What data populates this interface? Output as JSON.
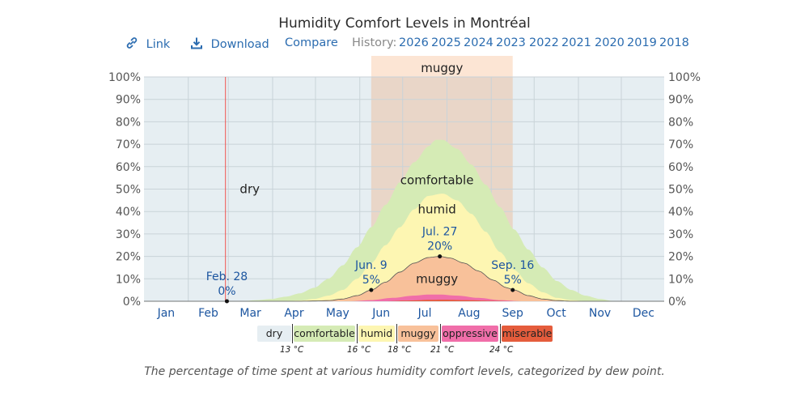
{
  "title": "Humidity Comfort Levels in Montréal",
  "nav": {
    "link_label": "Link",
    "download_label": "Download",
    "compare_label": "Compare",
    "history_label": "History:",
    "years": [
      "2026",
      "2025",
      "2024",
      "2023",
      "2022",
      "2021",
      "2020",
      "2019",
      "2018"
    ]
  },
  "colors": {
    "dry": "#e6eef2",
    "comfortable": "#d5ebb5",
    "humid": "#fdf6b2",
    "muggy": "#f8c19a",
    "oppressive": "#f06ea9",
    "miserable": "#e55c3c",
    "muggy_season": "#fbdcc6",
    "accent_blue": "#1d56a0"
  },
  "legend": {
    "categories": [
      "dry",
      "comfortable",
      "humid",
      "muggy",
      "oppressive",
      "miserable"
    ],
    "thresholds": [
      "13 °C",
      "16 °C",
      "18 °C",
      "21 °C",
      "24 °C"
    ]
  },
  "caption": "The percentage of time spent at various humidity comfort levels, categorized by dew point.",
  "chart_data": {
    "type": "area",
    "x_unit": "day of year",
    "months": [
      "Jan",
      "Feb",
      "Mar",
      "Apr",
      "May",
      "Jun",
      "Jul",
      "Aug",
      "Sep",
      "Oct",
      "Nov",
      "Dec"
    ],
    "ylim": [
      0,
      100
    ],
    "yticks": [
      "0%",
      "10%",
      "20%",
      "30%",
      "40%",
      "50%",
      "60%",
      "70%",
      "80%",
      "90%",
      "100%"
    ],
    "stacked_series_cumulative_percent": [
      {
        "name": "miserable",
        "x": [
          1,
          170,
          185,
          200,
          210,
          225,
          245,
          260,
          365
        ],
        "values": [
          0,
          0,
          0.3,
          0.6,
          0.7,
          0.5,
          0.2,
          0,
          0
        ]
      },
      {
        "name": "oppressive",
        "x": [
          1,
          145,
          160,
          175,
          190,
          200,
          208,
          220,
          235,
          250,
          265,
          365
        ],
        "values": [
          0,
          0,
          0.5,
          1.5,
          2.5,
          3,
          3,
          2.5,
          1.5,
          0.5,
          0,
          0
        ]
      },
      {
        "name": "muggy",
        "x": [
          1,
          110,
          120,
          130,
          140,
          150,
          160,
          170,
          180,
          190,
          200,
          208,
          215,
          225,
          235,
          245,
          255,
          260,
          270,
          280,
          290,
          300,
          365
        ],
        "values": [
          0,
          0,
          0.1,
          0.3,
          1,
          2.5,
          5,
          8.5,
          13,
          17,
          19.5,
          20,
          19.3,
          17,
          13.5,
          9.5,
          6,
          5,
          2.5,
          1,
          0.3,
          0,
          0
        ]
      },
      {
        "name": "humid",
        "x": [
          1,
          100,
          110,
          120,
          130,
          140,
          150,
          160,
          170,
          180,
          190,
          200,
          210,
          220,
          230,
          240,
          250,
          260,
          270,
          280,
          290,
          300,
          310,
          365
        ],
        "values": [
          0,
          0,
          0.3,
          1,
          2.5,
          5,
          10,
          17,
          25,
          33,
          41,
          47,
          48,
          45,
          39,
          31,
          22,
          14,
          8,
          4,
          1.5,
          0.5,
          0,
          0
        ]
      },
      {
        "name": "comfortable",
        "x": [
          1,
          70,
          80,
          90,
          100,
          110,
          120,
          130,
          140,
          150,
          160,
          170,
          180,
          190,
          200,
          205,
          210,
          220,
          230,
          240,
          250,
          260,
          270,
          280,
          290,
          300,
          310,
          320,
          330,
          365
        ],
        "values": [
          0,
          0,
          0.5,
          1,
          2,
          3.5,
          6,
          10,
          16,
          24,
          33,
          43,
          53,
          62,
          69,
          72,
          72,
          68,
          61,
          52,
          42,
          32,
          23,
          15,
          9,
          5,
          2.5,
          1,
          0,
          0
        ]
      }
    ],
    "band_labels": [
      "dry",
      "comfortable",
      "humid",
      "muggy"
    ],
    "muggy_season": {
      "label": "muggy",
      "start": "Jun. 9",
      "end": "Sep. 16"
    },
    "today_marker_day": 58,
    "annotations": [
      {
        "date": "Feb. 28",
        "value": "0%"
      },
      {
        "date": "Jun. 9",
        "value": "5%"
      },
      {
        "date": "Jul. 27",
        "value": "20%"
      },
      {
        "date": "Sep. 16",
        "value": "5%"
      }
    ]
  }
}
